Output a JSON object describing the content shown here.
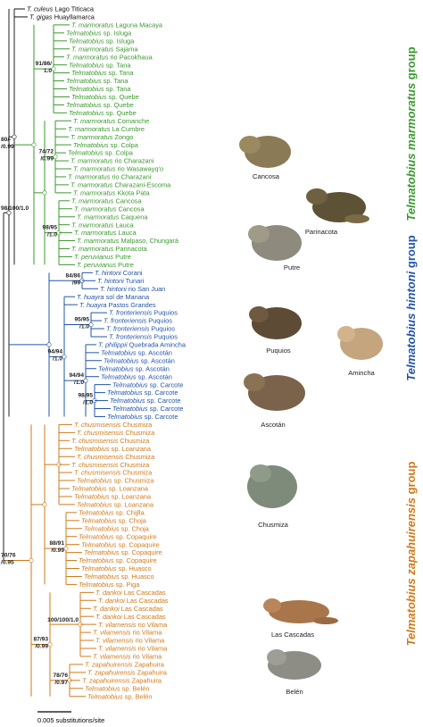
{
  "outgroup": {
    "color": "#111111",
    "tips": [
      {
        "taxon": "T. culeus",
        "locality": "Lago Titicaca"
      },
      {
        "taxon": "T. gigas",
        "locality": "Huayllamarca"
      }
    ]
  },
  "groups": [
    {
      "title_italic": "Telmatobius marmoratus",
      "title_rest": "group",
      "color": "#3a9a2e",
      "tips": [
        {
          "taxon": "T. marmoratus",
          "locality": "Laguna Macaya"
        },
        {
          "taxon": "Telmatobius",
          "locality": "sp. Isluga"
        },
        {
          "taxon": "Telmatobius",
          "locality": "sp. Isluga"
        },
        {
          "taxon": "T. marmoratus",
          "locality": "Sajama"
        },
        {
          "taxon": "T. marmoratus",
          "locality": "rio Pacokhaua"
        },
        {
          "taxon": "Telmatobius",
          "locality": "sp. Tana"
        },
        {
          "taxon": "Telmatobius",
          "locality": "sp. Tana"
        },
        {
          "taxon": "Telmatobius",
          "locality": "sp. Tana"
        },
        {
          "taxon": "Telmatobius",
          "locality": "sp. Tana"
        },
        {
          "taxon": "Telmatobius",
          "locality": "sp. Quebe"
        },
        {
          "taxon": "Telmatobius",
          "locality": "sp. Quebe"
        },
        {
          "taxon": "Telmatobius",
          "locality": "sp. Quebe"
        },
        {
          "taxon": "T. marmoratus",
          "locality": "Comanche"
        },
        {
          "taxon": "T. marmoratus",
          "locality": "La Cumbre"
        },
        {
          "taxon": "T. marmoratus",
          "locality": "Zongo"
        },
        {
          "taxon": "Telmatobius",
          "locality": "sp. Colpa"
        },
        {
          "taxon": "Telmatobius",
          "locality": "sp. Colpa"
        },
        {
          "taxon": "T. marmoratus",
          "locality": "rio Charazani"
        },
        {
          "taxon": "T. marmoratus",
          "locality": "rio Wasawayq'o"
        },
        {
          "taxon": "T. marmoratus",
          "locality": "rio Charazani"
        },
        {
          "taxon": "T. marmoratus",
          "locality": "Charazani-Escoma"
        },
        {
          "taxon": "T. marmoratus",
          "locality": "Kkota Pata"
        },
        {
          "taxon": "T. marmoratus",
          "locality": "Cancosa"
        },
        {
          "taxon": "T. marmoratus",
          "locality": "Cancosa"
        },
        {
          "taxon": "T. marmoratus",
          "locality": "Caquena"
        },
        {
          "taxon": "T. marmoratus",
          "locality": "Lauca"
        },
        {
          "taxon": "T. marmoratus",
          "locality": "Lauca"
        },
        {
          "taxon": "T. marmoratus",
          "locality": "Malpaso, Chungará"
        },
        {
          "taxon": "T. marmoratus",
          "locality": "Parinacota"
        },
        {
          "taxon": "T. peruvianus",
          "locality": "Putre"
        },
        {
          "taxon": "T. peruvianus",
          "locality": "Putre"
        }
      ]
    },
    {
      "title_italic": "Telmatobius hintoni",
      "title_rest": "group",
      "color": "#2255aa",
      "tips": [
        {
          "taxon": "T. hintoni",
          "locality": "Corani"
        },
        {
          "taxon": "T. hintoni",
          "locality": "Tunari"
        },
        {
          "taxon": "T. hintoni",
          "locality": "rio San Juan"
        },
        {
          "taxon": "T. huayra",
          "locality": "sol de Manana"
        },
        {
          "taxon": "T. huayra",
          "locality": "Pastos Grandes"
        },
        {
          "taxon": "T. fronteriensis",
          "locality": "Puquios"
        },
        {
          "taxon": "T. fronteriensis",
          "locality": "Puquios"
        },
        {
          "taxon": "T. fronteriensis",
          "locality": "Puquios"
        },
        {
          "taxon": "T. fronteriensis",
          "locality": "Puquios"
        },
        {
          "taxon": "T. philippii",
          "locality": "Quebrada Amincha"
        },
        {
          "taxon": "Telmatobius",
          "locality": "sp. Ascotán"
        },
        {
          "taxon": "Telmatobius",
          "locality": "sp. Ascotán"
        },
        {
          "taxon": "Telmatobius",
          "locality": "sp. Ascotán"
        },
        {
          "taxon": "Telmatobius",
          "locality": "sp. Ascotán"
        },
        {
          "taxon": "Telmatobius",
          "locality": "sp. Carcote"
        },
        {
          "taxon": "Telmatobius",
          "locality": "sp. Carcote"
        },
        {
          "taxon": "Telmatobius",
          "locality": "sp. Carcote"
        },
        {
          "taxon": "Telmatobius",
          "locality": "sp. Carcote"
        },
        {
          "taxon": "Telmatobius",
          "locality": "sp. Carcote"
        }
      ]
    },
    {
      "title_italic": "Telmatobius zapahuirensis",
      "title_rest": "group",
      "color": "#d07a1a",
      "tips": [
        {
          "taxon": "T. chusmisensis",
          "locality": "Chusmiza"
        },
        {
          "taxon": "T. chusmisensis",
          "locality": "Chusmiza"
        },
        {
          "taxon": "T. chusmisensis",
          "locality": "Chusmiza"
        },
        {
          "taxon": "Telmatobius",
          "locality": "sp. Loanzana"
        },
        {
          "taxon": "T. chusmisensis",
          "locality": "Chusmiza"
        },
        {
          "taxon": "T. chusmisensis",
          "locality": "Chusmiza"
        },
        {
          "taxon": "T. chusmisensis",
          "locality": "Chusmiza"
        },
        {
          "taxon": "Telmatobius",
          "locality": "sp. Chusmiza"
        },
        {
          "taxon": "Telmatobius",
          "locality": "sp. Loanzana"
        },
        {
          "taxon": "Telmatobius",
          "locality": "sp. Loanzana"
        },
        {
          "taxon": "Telmatobius",
          "locality": "sp. Loanzana"
        },
        {
          "taxon": "Telmatobius",
          "locality": "sp. Chijlla"
        },
        {
          "taxon": "Telmatobius",
          "locality": "sp. Choja"
        },
        {
          "taxon": "Telmatobius",
          "locality": "sp. Choja"
        },
        {
          "taxon": "Telmatobius",
          "locality": "sp. Copaquire"
        },
        {
          "taxon": "Telmatobius",
          "locality": "sp. Copaquire"
        },
        {
          "taxon": "Telmatobius",
          "locality": "sp. Copaquire"
        },
        {
          "taxon": "Telmatobius",
          "locality": "sp. Copaquire"
        },
        {
          "taxon": "Telmatobius",
          "locality": "sp. Huasco"
        },
        {
          "taxon": "Telmatobius",
          "locality": "sp. Huasco"
        },
        {
          "taxon": "Telmatobius",
          "locality": "sp. Piga"
        },
        {
          "taxon": "T. dankoi",
          "locality": "Las Cascadas"
        },
        {
          "taxon": "T. dankoi",
          "locality": "Las Cascadas"
        },
        {
          "taxon": "T. dankoi",
          "locality": "Las Cascadas"
        },
        {
          "taxon": "T. dankoi",
          "locality": "Las Cascadas"
        },
        {
          "taxon": "T. vilamensis",
          "locality": "rio Vilama"
        },
        {
          "taxon": "T. vilamensis",
          "locality": "rio Vilama"
        },
        {
          "taxon": "T. vilamensis",
          "locality": "rio Vilama"
        },
        {
          "taxon": "T. vilamensis",
          "locality": "rio Vilama"
        },
        {
          "taxon": "T. vilamensis",
          "locality": "rio Vilama"
        },
        {
          "taxon": "T. zapahuirensis",
          "locality": "Zapahuira"
        },
        {
          "taxon": "T. zapahuirensis",
          "locality": "Zapahuira"
        },
        {
          "taxon": "T. zapahuirensis",
          "locality": "Zapahuira"
        },
        {
          "taxon": "Telmatobius",
          "locality": "sp. Belén"
        },
        {
          "taxon": "Telmatobius",
          "locality": "sp. Belén"
        }
      ]
    }
  ],
  "supports": [
    [
      "91/86/",
      "1.0"
    ],
    [
      "80/-",
      "/0.99"
    ],
    [
      "74/72",
      "/0.99"
    ],
    [
      "98/95",
      "/1.0"
    ],
    [
      "98/100/1.0"
    ],
    [
      "84/86",
      "/99"
    ],
    [
      "94/94",
      "/1.0"
    ],
    [
      "95/95",
      "/1.0"
    ],
    [
      "94/94",
      "/1.0"
    ],
    [
      "98/95",
      "/1.0"
    ],
    [
      "70/76",
      "/0.95"
    ],
    [
      "88/91",
      "/0.99"
    ],
    [
      "87/93",
      "/0.99"
    ],
    [
      "100/100/1.0"
    ],
    [
      "78/76",
      "/0.97"
    ]
  ],
  "photos": [
    "Cancosa",
    "Parinacota",
    "Putre",
    "Puquios",
    "Amincha",
    "Ascotán",
    "Chusmiza",
    "Las Cascadas",
    "Belén"
  ],
  "scale_label": "0.005 substitutions/site"
}
